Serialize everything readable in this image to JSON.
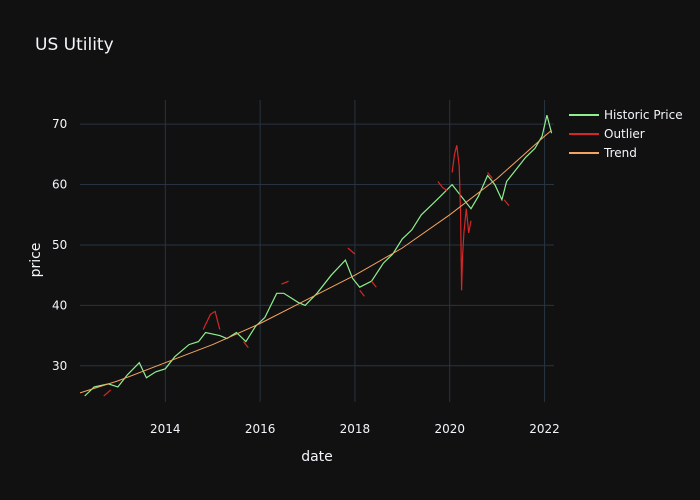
{
  "chart_data": {
    "type": "line",
    "title": "US Utility",
    "xlabel": "date",
    "ylabel": "price",
    "xlim": [
      2012.2,
      2022.2
    ],
    "ylim": [
      24,
      74
    ],
    "x_ticks": [
      2014,
      2016,
      2018,
      2020,
      2022
    ],
    "x_tick_labels": [
      "2014",
      "2016",
      "2018",
      "2020",
      "2022"
    ],
    "y_ticks": [
      30,
      40,
      50,
      60,
      70
    ],
    "y_tick_labels": [
      "30",
      "40",
      "50",
      "60",
      "70"
    ],
    "grid": true,
    "legend_position": "top-right",
    "background": "#111111",
    "grid_color": "#283442",
    "series": [
      {
        "name": "Historic Price",
        "color": "#90ee90",
        "x": [
          2012.3,
          2012.5,
          2012.8,
          2013.0,
          2013.2,
          2013.45,
          2013.6,
          2013.8,
          2014.0,
          2014.2,
          2014.5,
          2014.7,
          2014.85,
          2015.15,
          2015.3,
          2015.5,
          2015.7,
          2015.9,
          2016.1,
          2016.35,
          2016.5,
          2016.8,
          2016.95,
          2017.2,
          2017.5,
          2017.8,
          2017.95,
          2018.1,
          2018.35,
          2018.6,
          2018.8,
          2019.0,
          2019.2,
          2019.4,
          2019.6,
          2019.8,
          2020.05,
          2020.45,
          2020.6,
          2020.8,
          2020.95,
          2021.1,
          2021.2,
          2021.4,
          2021.6,
          2021.8,
          2021.95,
          2022.05,
          2022.15
        ],
        "values": [
          25.0,
          26.5,
          27.0,
          26.5,
          28.5,
          30.5,
          28.0,
          29.0,
          29.5,
          31.5,
          33.5,
          34.0,
          35.5,
          35.0,
          34.5,
          35.5,
          34.0,
          36.5,
          38.0,
          42.0,
          42.0,
          40.5,
          40.0,
          42.0,
          45.0,
          47.5,
          44.5,
          43.0,
          44.0,
          47.0,
          48.5,
          51.0,
          52.5,
          55.0,
          56.5,
          58.0,
          60.0,
          56.0,
          58.0,
          61.5,
          60.0,
          57.5,
          60.5,
          62.5,
          64.5,
          66.0,
          68.0,
          71.5,
          68.5
        ]
      },
      {
        "name": "Outlier",
        "color": "#d62728",
        "segments": [
          {
            "x": [
              2012.7,
              2012.85
            ],
            "values": [
              25.0,
              26.0
            ]
          },
          {
            "x": [
              2014.8,
              2014.95,
              2015.05,
              2015.15
            ],
            "values": [
              36.0,
              38.5,
              39.0,
              36.0
            ]
          },
          {
            "x": [
              2015.65,
              2015.75
            ],
            "values": [
              34.0,
              33.0
            ]
          },
          {
            "x": [
              2016.45,
              2016.6
            ],
            "values": [
              43.5,
              44.0
            ]
          },
          {
            "x": [
              2017.85,
              2018.0
            ],
            "values": [
              49.5,
              48.5
            ]
          },
          {
            "x": [
              2018.1,
              2018.2
            ],
            "values": [
              42.5,
              41.5
            ]
          },
          {
            "x": [
              2018.35,
              2018.45
            ],
            "values": [
              44.0,
              43.0
            ]
          },
          {
            "x": [
              2019.75,
              2019.85,
              2019.95
            ],
            "values": [
              60.5,
              59.5,
              59.0
            ]
          },
          {
            "x": [
              2020.05,
              2020.1,
              2020.15,
              2020.2,
              2020.23,
              2020.25,
              2020.27,
              2020.3,
              2020.35,
              2020.4,
              2020.45
            ],
            "values": [
              62.0,
              65.0,
              66.5,
              63.0,
              55.0,
              42.5,
              48.0,
              52.0,
              56.0,
              52.0,
              54.0
            ]
          },
          {
            "x": [
              2020.8,
              2020.9
            ],
            "values": [
              62.0,
              61.0
            ]
          },
          {
            "x": [
              2021.15,
              2021.25
            ],
            "values": [
              57.5,
              56.5
            ]
          }
        ]
      },
      {
        "name": "Trend",
        "color": "#f4a460",
        "x": [
          2012.2,
          2013.0,
          2014.0,
          2015.0,
          2016.0,
          2017.0,
          2018.0,
          2019.0,
          2020.0,
          2021.0,
          2022.0,
          2022.15
        ],
        "values": [
          25.5,
          27.5,
          30.5,
          33.5,
          37.0,
          41.0,
          45.0,
          49.5,
          55.0,
          61.0,
          68.0,
          69.0
        ]
      }
    ]
  }
}
